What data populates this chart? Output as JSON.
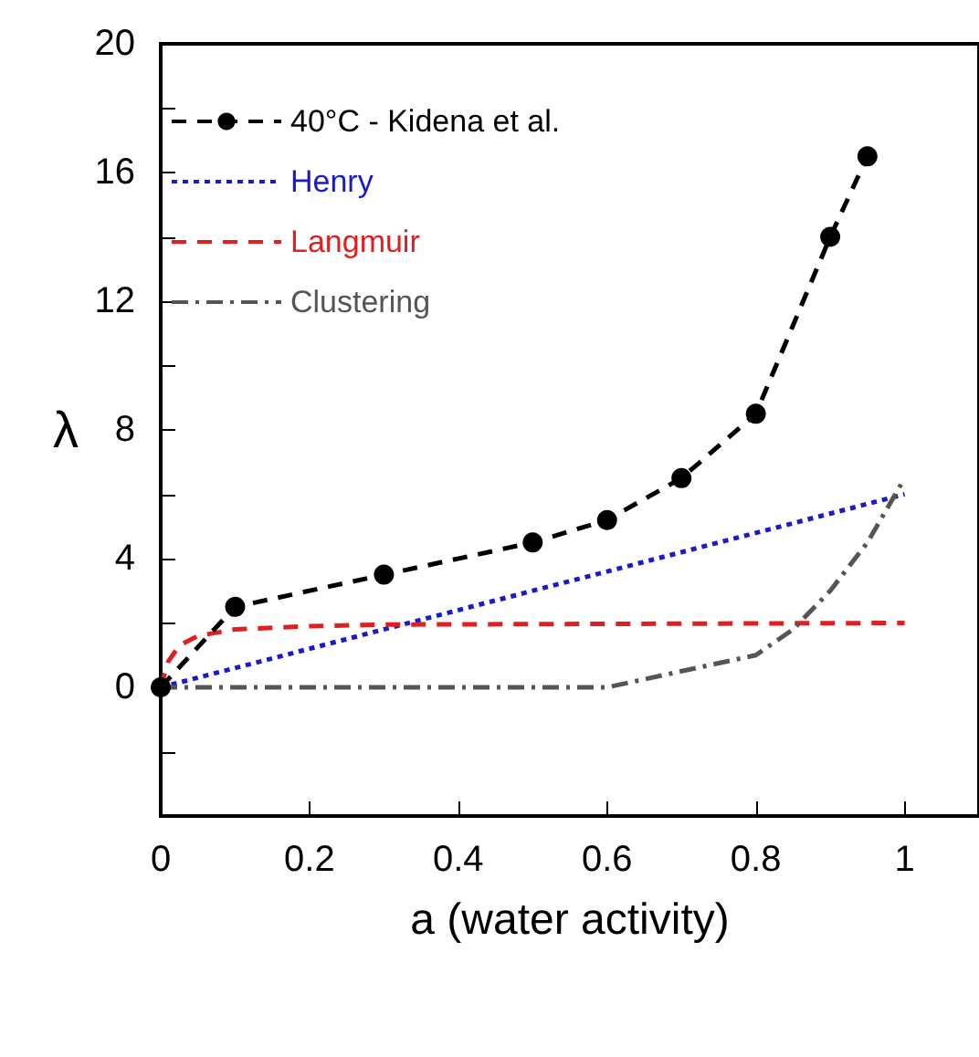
{
  "chart_data": {
    "type": "line",
    "xlabel": "a (water activity)",
    "ylabel": "λ",
    "xlim": [
      0,
      1.1
    ],
    "xticks": [
      0,
      0.2,
      0.4,
      0.6,
      0.8,
      1
    ],
    "ylim": [
      -4,
      20
    ],
    "yticks": [
      {
        "value": -4,
        "label": null
      },
      {
        "value": -2,
        "label": null
      },
      0,
      {
        "value": 2,
        "label": null
      },
      4,
      {
        "value": 6,
        "label": null
      },
      8,
      {
        "value": 10,
        "label": null
      },
      12,
      {
        "value": 14,
        "label": null
      },
      16,
      {
        "value": 18,
        "label": null
      },
      20
    ],
    "grid": false,
    "legend": "top left",
    "series": [
      {
        "name": "40°C - Kidena et al.",
        "color": "#000000",
        "marker": "circle",
        "line_style": "dashed",
        "x": [
          0,
          0.1,
          0.3,
          0.5,
          0.6,
          0.7,
          0.8,
          0.9,
          0.95
        ],
        "values": [
          0,
          2.5,
          3.5,
          4.5,
          5.2,
          6.5,
          8.5,
          14,
          16.5
        ]
      },
      {
        "name": "Henry",
        "color": "#1a1ac8",
        "marker": "none",
        "line_style": "dotted",
        "x": [
          0,
          1
        ],
        "values": [
          0,
          6
        ]
      },
      {
        "name": "Langmuir",
        "color": "#e02020",
        "marker": "none",
        "line_style": "dashed",
        "x": [
          0,
          0.01,
          0.025,
          0.05,
          0.1,
          0.2,
          0.3,
          1
        ],
        "values": [
          0,
          0.8,
          1.3,
          1.6,
          1.8,
          1.9,
          1.95,
          2
        ]
      },
      {
        "name": "Clustering",
        "color": "#555555",
        "marker": "none",
        "line_style": "dashdot",
        "x": [
          0,
          0.6,
          0.8,
          0.85,
          0.9,
          0.95,
          1
        ],
        "values": [
          0,
          0,
          1,
          1.8,
          3,
          4.5,
          6.5
        ]
      }
    ]
  }
}
